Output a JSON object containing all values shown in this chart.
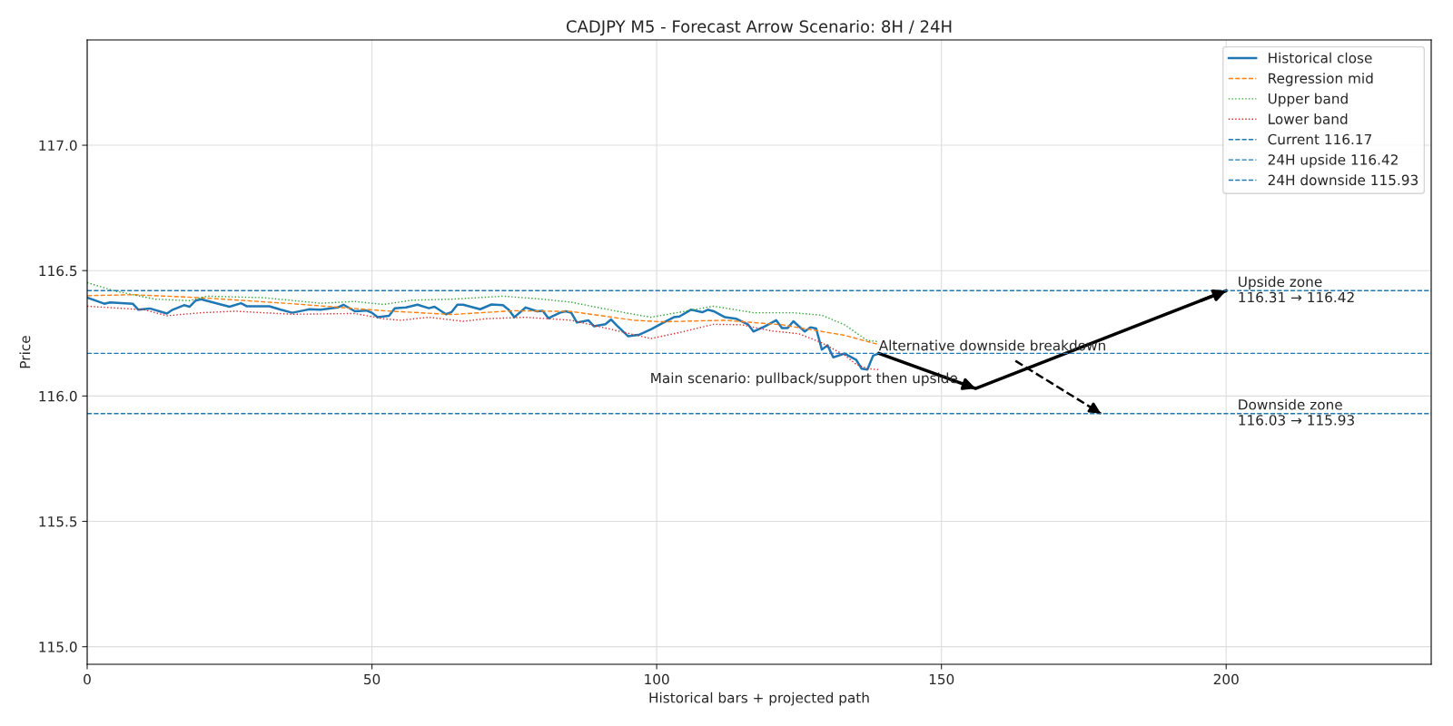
{
  "chart_data": {
    "type": "line",
    "title": "CADJPY M5 - Forecast Arrow Scenario: 8H / 24H",
    "xlabel": "Historical bars + projected path",
    "ylabel": "Price",
    "xlim": [
      0,
      236
    ],
    "ylim": [
      114.93,
      117.42
    ],
    "xticks": [
      0,
      50,
      100,
      150,
      200
    ],
    "yticks": [
      {
        "value": 115.0,
        "label": "115.0"
      },
      {
        "value": 115.5,
        "label": "115.5"
      },
      {
        "value": 116.0,
        "label": "116.0"
      },
      {
        "value": 116.5,
        "label": "116.5"
      },
      {
        "value": 117.0,
        "label": "117.0"
      }
    ],
    "grid": true,
    "legend": "top right",
    "series": [
      {
        "name": "Historical close",
        "color": "#1f77b4",
        "line_style": "solid",
        "x": [
          0,
          3,
          4,
          8,
          9,
          11,
          14,
          15,
          17,
          18,
          19,
          20,
          23,
          25,
          27,
          28,
          32,
          34,
          36,
          38,
          39,
          41,
          44,
          45,
          47,
          49,
          50,
          51,
          53,
          54,
          56,
          58,
          60,
          61,
          63,
          64,
          65,
          66,
          69,
          71,
          73,
          74,
          75,
          77,
          79,
          80,
          81,
          83,
          84,
          85,
          86,
          88,
          89,
          91,
          92,
          93,
          95,
          97,
          99,
          101,
          103,
          104,
          106,
          108,
          109,
          110,
          112,
          114,
          116,
          117,
          119,
          121,
          122,
          123,
          124,
          126,
          127,
          128,
          129,
          130,
          131,
          133,
          135,
          136,
          137,
          138,
          139
        ],
        "values": [
          116.392,
          116.368,
          116.373,
          116.368,
          116.344,
          116.349,
          116.329,
          116.344,
          116.362,
          116.356,
          116.38,
          116.386,
          116.368,
          116.356,
          116.37,
          116.358,
          116.358,
          116.344,
          116.332,
          116.341,
          116.346,
          116.344,
          116.353,
          116.364,
          116.338,
          116.341,
          116.332,
          116.314,
          116.32,
          116.35,
          116.353,
          116.364,
          116.35,
          116.356,
          116.326,
          116.335,
          116.364,
          116.364,
          116.346,
          116.365,
          116.362,
          116.344,
          116.314,
          116.353,
          116.338,
          116.34,
          116.31,
          116.332,
          116.338,
          116.332,
          116.293,
          116.302,
          116.278,
          116.286,
          116.305,
          116.281,
          116.238,
          116.245,
          116.266,
          116.29,
          116.314,
          116.317,
          116.344,
          116.334,
          116.344,
          116.338,
          116.314,
          116.308,
          116.286,
          116.257,
          116.278,
          116.302,
          116.271,
          116.271,
          116.298,
          116.257,
          116.274,
          116.269,
          116.185,
          116.202,
          116.154,
          116.169,
          116.145,
          116.109,
          116.105,
          116.161,
          116.169
        ]
      },
      {
        "name": "Regression mid",
        "color": "#ff7f0e",
        "line_style": "dashed",
        "x": [
          0,
          8,
          20,
          36,
          52,
          64,
          75,
          85,
          96,
          101,
          112,
          122,
          133,
          139
        ],
        "values": [
          116.4,
          116.404,
          116.392,
          116.368,
          116.34,
          116.325,
          116.34,
          116.337,
          116.302,
          116.296,
          116.302,
          116.284,
          116.242,
          116.205
        ]
      },
      {
        "name": "Upper band",
        "color": "#2ca02c",
        "line_style": "dotted",
        "x": [
          0,
          5,
          12,
          18,
          21,
          31,
          41,
          47,
          52,
          57,
          64,
          73,
          79,
          85,
          93,
          99,
          110,
          117,
          124,
          129,
          133,
          137,
          139
        ],
        "values": [
          116.452,
          116.418,
          116.386,
          116.38,
          116.398,
          116.392,
          116.37,
          116.377,
          116.365,
          116.382,
          116.386,
          116.398,
          116.388,
          116.374,
          116.338,
          116.314,
          116.358,
          116.332,
          116.332,
          116.322,
          116.284,
          116.221,
          116.217
        ]
      },
      {
        "name": "Lower band",
        "color": "#d62728",
        "line_style": "dotted",
        "x": [
          0,
          10,
          14,
          20,
          26,
          36,
          47,
          52,
          55,
          60,
          66,
          70,
          77,
          85,
          91,
          99,
          104,
          110,
          115,
          120,
          125,
          129,
          133,
          135,
          137,
          139
        ],
        "values": [
          116.358,
          116.344,
          116.32,
          116.332,
          116.338,
          116.326,
          116.329,
          116.308,
          116.302,
          116.314,
          116.298,
          116.308,
          116.314,
          116.302,
          116.271,
          116.229,
          116.253,
          116.286,
          116.284,
          116.26,
          116.248,
          116.212,
          116.163,
          116.127,
          116.109,
          116.105
        ]
      },
      {
        "color": "#000000",
        "line_style": "solid",
        "x": [
          139,
          156,
          200
        ],
        "values": [
          116.17,
          116.03,
          116.42
        ]
      },
      {
        "color": "#000000",
        "line_style": "dashed",
        "x": [
          163,
          178
        ],
        "values": [
          116.14,
          115.93
        ]
      }
    ],
    "ref_lines": [
      {
        "axis": "y",
        "value": 116.17,
        "label": "Current 116.17",
        "color": "#1f77b4",
        "line_style": "dashed"
      },
      {
        "axis": "y",
        "value": 116.42,
        "label": "24H upside 116.42",
        "color": "#1f77b4",
        "line_style": "dashed"
      },
      {
        "axis": "y",
        "value": 115.93,
        "label": "24H downside 115.93",
        "color": "#1f77b4",
        "line_style": "dashed"
      }
    ],
    "annotations": [
      {
        "text": "Upside zone\n116.31 → 116.42",
        "x": 202,
        "y": 116.42
      },
      {
        "text": "Downside zone\n116.03 → 115.93",
        "x": 202,
        "y": 115.93
      },
      {
        "text": "Alternative downside breakdown",
        "x": 139,
        "y": 116.17
      },
      {
        "text": "Main scenario: pullback/support then upside",
        "x": 156,
        "y": 116.03
      }
    ]
  }
}
